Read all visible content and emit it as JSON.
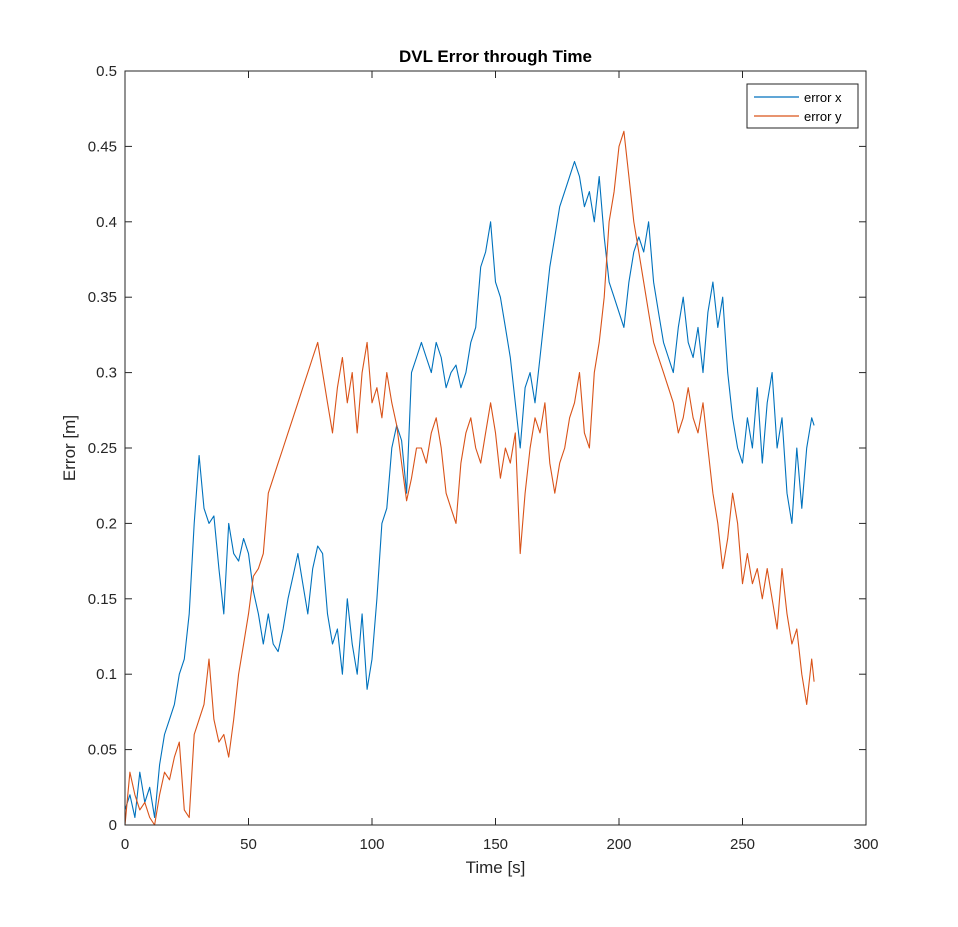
{
  "chart_data": {
    "type": "line",
    "title": "DVL Error through Time",
    "xlabel": "Time [s]",
    "ylabel": "Error [m]",
    "xlim": [
      0,
      300
    ],
    "ylim": [
      0,
      0.5
    ],
    "xticks": [
      0,
      50,
      100,
      150,
      200,
      250,
      300
    ],
    "xtick_labels": [
      "0",
      "50",
      "100",
      "150",
      "200",
      "250",
      "300"
    ],
    "yticks": [
      0,
      0.05,
      0.1,
      0.15,
      0.2,
      0.25,
      0.3,
      0.35,
      0.4,
      0.45,
      0.5
    ],
    "ytick_labels": [
      "0",
      "0.05",
      "0.1",
      "0.15",
      "0.2",
      "0.25",
      "0.3",
      "0.35",
      "0.4",
      "0.45",
      "0.5"
    ],
    "grid": false,
    "legend_position": "top-right",
    "series": [
      {
        "name": "error x",
        "color": "#0072BD",
        "points": [
          [
            0,
            0.01
          ],
          [
            2,
            0.02
          ],
          [
            4,
            0.005
          ],
          [
            6,
            0.035
          ],
          [
            8,
            0.015
          ],
          [
            10,
            0.025
          ],
          [
            12,
            0.005
          ],
          [
            14,
            0.04
          ],
          [
            16,
            0.06
          ],
          [
            18,
            0.07
          ],
          [
            20,
            0.08
          ],
          [
            22,
            0.1
          ],
          [
            24,
            0.11
          ],
          [
            26,
            0.14
          ],
          [
            28,
            0.2
          ],
          [
            30,
            0.245
          ],
          [
            32,
            0.21
          ],
          [
            34,
            0.2
          ],
          [
            36,
            0.205
          ],
          [
            38,
            0.17
          ],
          [
            40,
            0.14
          ],
          [
            42,
            0.2
          ],
          [
            44,
            0.18
          ],
          [
            46,
            0.175
          ],
          [
            48,
            0.19
          ],
          [
            50,
            0.18
          ],
          [
            52,
            0.155
          ],
          [
            54,
            0.14
          ],
          [
            56,
            0.12
          ],
          [
            58,
            0.14
          ],
          [
            60,
            0.12
          ],
          [
            62,
            0.115
          ],
          [
            64,
            0.13
          ],
          [
            66,
            0.15
          ],
          [
            68,
            0.165
          ],
          [
            70,
            0.18
          ],
          [
            72,
            0.16
          ],
          [
            74,
            0.14
          ],
          [
            76,
            0.17
          ],
          [
            78,
            0.185
          ],
          [
            80,
            0.18
          ],
          [
            82,
            0.14
          ],
          [
            84,
            0.12
          ],
          [
            86,
            0.13
          ],
          [
            88,
            0.1
          ],
          [
            90,
            0.15
          ],
          [
            92,
            0.12
          ],
          [
            94,
            0.1
          ],
          [
            96,
            0.14
          ],
          [
            98,
            0.09
          ],
          [
            100,
            0.11
          ],
          [
            102,
            0.15
          ],
          [
            104,
            0.2
          ],
          [
            106,
            0.21
          ],
          [
            108,
            0.25
          ],
          [
            110,
            0.265
          ],
          [
            112,
            0.255
          ],
          [
            114,
            0.22
          ],
          [
            116,
            0.3
          ],
          [
            118,
            0.31
          ],
          [
            120,
            0.32
          ],
          [
            122,
            0.31
          ],
          [
            124,
            0.3
          ],
          [
            126,
            0.32
          ],
          [
            128,
            0.31
          ],
          [
            130,
            0.29
          ],
          [
            132,
            0.3
          ],
          [
            134,
            0.305
          ],
          [
            136,
            0.29
          ],
          [
            138,
            0.3
          ],
          [
            140,
            0.32
          ],
          [
            142,
            0.33
          ],
          [
            144,
            0.37
          ],
          [
            146,
            0.38
          ],
          [
            148,
            0.4
          ],
          [
            150,
            0.36
          ],
          [
            152,
            0.35
          ],
          [
            154,
            0.33
          ],
          [
            156,
            0.31
          ],
          [
            158,
            0.28
          ],
          [
            160,
            0.25
          ],
          [
            162,
            0.29
          ],
          [
            164,
            0.3
          ],
          [
            166,
            0.28
          ],
          [
            168,
            0.31
          ],
          [
            170,
            0.34
          ],
          [
            172,
            0.37
          ],
          [
            174,
            0.39
          ],
          [
            176,
            0.41
          ],
          [
            178,
            0.42
          ],
          [
            180,
            0.43
          ],
          [
            182,
            0.44
          ],
          [
            184,
            0.43
          ],
          [
            186,
            0.41
          ],
          [
            188,
            0.42
          ],
          [
            190,
            0.4
          ],
          [
            192,
            0.43
          ],
          [
            194,
            0.39
          ],
          [
            196,
            0.36
          ],
          [
            198,
            0.35
          ],
          [
            200,
            0.34
          ],
          [
            202,
            0.33
          ],
          [
            204,
            0.36
          ],
          [
            206,
            0.38
          ],
          [
            208,
            0.39
          ],
          [
            210,
            0.38
          ],
          [
            212,
            0.4
          ],
          [
            214,
            0.36
          ],
          [
            216,
            0.34
          ],
          [
            218,
            0.32
          ],
          [
            220,
            0.31
          ],
          [
            222,
            0.3
          ],
          [
            224,
            0.33
          ],
          [
            226,
            0.35
          ],
          [
            228,
            0.32
          ],
          [
            230,
            0.31
          ],
          [
            232,
            0.33
          ],
          [
            234,
            0.3
          ],
          [
            236,
            0.34
          ],
          [
            238,
            0.36
          ],
          [
            240,
            0.33
          ],
          [
            242,
            0.35
          ],
          [
            244,
            0.3
          ],
          [
            246,
            0.27
          ],
          [
            248,
            0.25
          ],
          [
            250,
            0.24
          ],
          [
            252,
            0.27
          ],
          [
            254,
            0.25
          ],
          [
            256,
            0.29
          ],
          [
            258,
            0.24
          ],
          [
            260,
            0.28
          ],
          [
            262,
            0.3
          ],
          [
            264,
            0.25
          ],
          [
            266,
            0.27
          ],
          [
            268,
            0.22
          ],
          [
            270,
            0.2
          ],
          [
            272,
            0.25
          ],
          [
            274,
            0.21
          ],
          [
            276,
            0.25
          ],
          [
            278,
            0.27
          ],
          [
            279,
            0.265
          ]
        ]
      },
      {
        "name": "error y",
        "color": "#D95319",
        "points": [
          [
            0,
            0.0
          ],
          [
            2,
            0.035
          ],
          [
            4,
            0.02
          ],
          [
            6,
            0.01
          ],
          [
            8,
            0.015
          ],
          [
            10,
            0.005
          ],
          [
            12,
            0.0
          ],
          [
            14,
            0.02
          ],
          [
            16,
            0.035
          ],
          [
            18,
            0.03
          ],
          [
            20,
            0.045
          ],
          [
            22,
            0.055
          ],
          [
            24,
            0.01
          ],
          [
            26,
            0.005
          ],
          [
            28,
            0.06
          ],
          [
            30,
            0.07
          ],
          [
            32,
            0.08
          ],
          [
            34,
            0.11
          ],
          [
            36,
            0.07
          ],
          [
            38,
            0.055
          ],
          [
            40,
            0.06
          ],
          [
            42,
            0.045
          ],
          [
            44,
            0.07
          ],
          [
            46,
            0.1
          ],
          [
            48,
            0.12
          ],
          [
            50,
            0.14
          ],
          [
            52,
            0.165
          ],
          [
            54,
            0.17
          ],
          [
            56,
            0.18
          ],
          [
            58,
            0.22
          ],
          [
            60,
            0.23
          ],
          [
            62,
            0.24
          ],
          [
            64,
            0.25
          ],
          [
            66,
            0.26
          ],
          [
            68,
            0.27
          ],
          [
            70,
            0.28
          ],
          [
            72,
            0.29
          ],
          [
            74,
            0.3
          ],
          [
            76,
            0.31
          ],
          [
            78,
            0.32
          ],
          [
            80,
            0.3
          ],
          [
            82,
            0.28
          ],
          [
            84,
            0.26
          ],
          [
            86,
            0.29
          ],
          [
            88,
            0.31
          ],
          [
            90,
            0.28
          ],
          [
            92,
            0.3
          ],
          [
            94,
            0.26
          ],
          [
            96,
            0.3
          ],
          [
            98,
            0.32
          ],
          [
            100,
            0.28
          ],
          [
            102,
            0.29
          ],
          [
            104,
            0.27
          ],
          [
            106,
            0.3
          ],
          [
            108,
            0.28
          ],
          [
            110,
            0.265
          ],
          [
            112,
            0.24
          ],
          [
            114,
            0.215
          ],
          [
            116,
            0.23
          ],
          [
            118,
            0.25
          ],
          [
            120,
            0.25
          ],
          [
            122,
            0.24
          ],
          [
            124,
            0.26
          ],
          [
            126,
            0.27
          ],
          [
            128,
            0.25
          ],
          [
            130,
            0.22
          ],
          [
            132,
            0.21
          ],
          [
            134,
            0.2
          ],
          [
            136,
            0.24
          ],
          [
            138,
            0.26
          ],
          [
            140,
            0.27
          ],
          [
            142,
            0.25
          ],
          [
            144,
            0.24
          ],
          [
            146,
            0.26
          ],
          [
            148,
            0.28
          ],
          [
            150,
            0.26
          ],
          [
            152,
            0.23
          ],
          [
            154,
            0.25
          ],
          [
            156,
            0.24
          ],
          [
            158,
            0.26
          ],
          [
            160,
            0.18
          ],
          [
            162,
            0.22
          ],
          [
            164,
            0.25
          ],
          [
            166,
            0.27
          ],
          [
            168,
            0.26
          ],
          [
            170,
            0.28
          ],
          [
            172,
            0.24
          ],
          [
            174,
            0.22
          ],
          [
            176,
            0.24
          ],
          [
            178,
            0.25
          ],
          [
            180,
            0.27
          ],
          [
            182,
            0.28
          ],
          [
            184,
            0.3
          ],
          [
            186,
            0.26
          ],
          [
            188,
            0.25
          ],
          [
            190,
            0.3
          ],
          [
            192,
            0.32
          ],
          [
            194,
            0.35
          ],
          [
            196,
            0.4
          ],
          [
            198,
            0.42
          ],
          [
            200,
            0.45
          ],
          [
            202,
            0.46
          ],
          [
            204,
            0.43
          ],
          [
            206,
            0.4
          ],
          [
            208,
            0.38
          ],
          [
            210,
            0.36
          ],
          [
            212,
            0.34
          ],
          [
            214,
            0.32
          ],
          [
            216,
            0.31
          ],
          [
            218,
            0.3
          ],
          [
            220,
            0.29
          ],
          [
            222,
            0.28
          ],
          [
            224,
            0.26
          ],
          [
            226,
            0.27
          ],
          [
            228,
            0.29
          ],
          [
            230,
            0.27
          ],
          [
            232,
            0.26
          ],
          [
            234,
            0.28
          ],
          [
            236,
            0.25
          ],
          [
            238,
            0.22
          ],
          [
            240,
            0.2
          ],
          [
            242,
            0.17
          ],
          [
            244,
            0.19
          ],
          [
            246,
            0.22
          ],
          [
            248,
            0.2
          ],
          [
            250,
            0.16
          ],
          [
            252,
            0.18
          ],
          [
            254,
            0.16
          ],
          [
            256,
            0.17
          ],
          [
            258,
            0.15
          ],
          [
            260,
            0.17
          ],
          [
            262,
            0.15
          ],
          [
            264,
            0.13
          ],
          [
            266,
            0.17
          ],
          [
            268,
            0.14
          ],
          [
            270,
            0.12
          ],
          [
            272,
            0.13
          ],
          [
            274,
            0.1
          ],
          [
            276,
            0.08
          ],
          [
            278,
            0.11
          ],
          [
            279,
            0.095
          ]
        ]
      }
    ]
  }
}
